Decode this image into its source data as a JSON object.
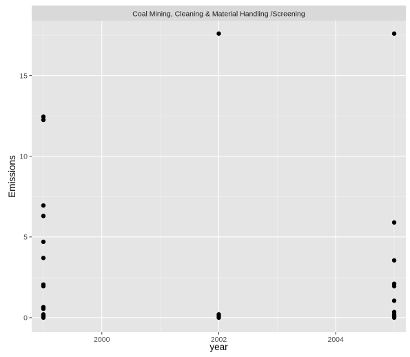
{
  "chart_data": {
    "type": "scatter",
    "facet_label": "Coal Mining, Cleaning & Material Handling /Screening",
    "xlabel": "year",
    "ylabel": "Emissions",
    "xlim": [
      1998.8,
      2005.2
    ],
    "ylim": [
      -0.9,
      18.4
    ],
    "x_ticks": [
      2000,
      2002,
      2004
    ],
    "y_ticks": [
      0,
      5,
      10,
      15
    ],
    "grid": true,
    "colors": {
      "panel": "#e5e5e5",
      "grid_major": "#ffffff",
      "grid_minor": "#f2f2f2",
      "strip": "#d9d9d9",
      "point": "#000000"
    },
    "points": [
      {
        "x": 1999,
        "y": 12.45
      },
      {
        "x": 1999,
        "y": 12.25
      },
      {
        "x": 1999,
        "y": 6.95
      },
      {
        "x": 1999,
        "y": 6.3
      },
      {
        "x": 1999,
        "y": 4.7
      },
      {
        "x": 1999,
        "y": 3.7
      },
      {
        "x": 1999,
        "y": 2.05
      },
      {
        "x": 1999,
        "y": 1.95
      },
      {
        "x": 1999,
        "y": 0.65
      },
      {
        "x": 1999,
        "y": 0.55
      },
      {
        "x": 1999,
        "y": 0.2
      },
      {
        "x": 1999,
        "y": 0.1
      },
      {
        "x": 1999,
        "y": 0.05
      },
      {
        "x": 1999,
        "y": 0.0
      },
      {
        "x": 2002,
        "y": 17.6
      },
      {
        "x": 2002,
        "y": 0.2
      },
      {
        "x": 2002,
        "y": 0.1
      },
      {
        "x": 2002,
        "y": 0.0
      },
      {
        "x": 2005,
        "y": 17.6
      },
      {
        "x": 2005,
        "y": 5.9
      },
      {
        "x": 2005,
        "y": 3.55
      },
      {
        "x": 2005,
        "y": 2.1
      },
      {
        "x": 2005,
        "y": 1.95
      },
      {
        "x": 2005,
        "y": 1.05
      },
      {
        "x": 2005,
        "y": 0.35
      },
      {
        "x": 2005,
        "y": 0.2
      },
      {
        "x": 2005,
        "y": 0.1
      },
      {
        "x": 2005,
        "y": 0.05
      },
      {
        "x": 2005,
        "y": 0.0
      }
    ]
  }
}
